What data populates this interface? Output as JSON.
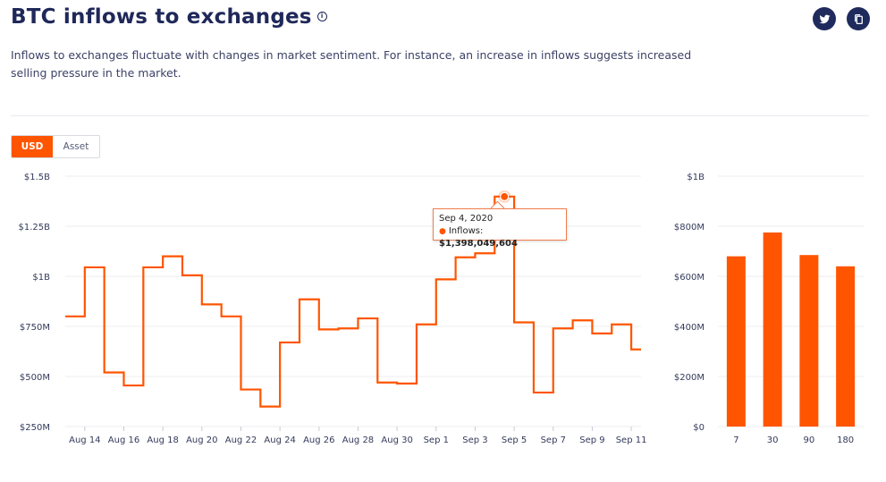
{
  "header": {
    "title": "BTC inflows to exchanges",
    "info_icon": "info-icon",
    "description": "Inflows to exchanges fluctuate with changes in market sentiment. For instance, an increase in inflows suggests increased selling pressure in the market.",
    "share_buttons": [
      {
        "name": "twitter-icon"
      },
      {
        "name": "copy-icon"
      }
    ]
  },
  "toggle": {
    "usd_label": "USD",
    "asset_label": "Asset",
    "active": "USD",
    "accent_color": "#ff5500"
  },
  "tooltip": {
    "date": "Sep 4, 2020",
    "label": "Inflows:",
    "value": "$1,398,049,604"
  },
  "chart_data": [
    {
      "type": "line",
      "step": true,
      "color": "#ff5500",
      "title": "",
      "xlabel": "",
      "ylabel": "",
      "ylim": [
        250000000,
        1500000000
      ],
      "yticks": [
        "$250M",
        "$500M",
        "$750M",
        "$1B",
        "$1.25B",
        "$1.5B"
      ],
      "xticks": [
        "Aug 14",
        "Aug 16",
        "Aug 18",
        "Aug 20",
        "Aug 22",
        "Aug 24",
        "Aug 26",
        "Aug 28",
        "Aug 30",
        "Sep 1",
        "Sep 3",
        "Sep 5",
        "Sep 7",
        "Sep 9",
        "Sep 11"
      ],
      "grid": true,
      "legend": "none",
      "series": [
        {
          "dates": [
            "Aug 13",
            "Aug 14",
            "Aug 15",
            "Aug 16",
            "Aug 17",
            "Aug 18",
            "Aug 19",
            "Aug 20",
            "Aug 21",
            "Aug 22",
            "Aug 23",
            "Aug 24",
            "Aug 25",
            "Aug 26",
            "Aug 27",
            "Aug 28",
            "Aug 29",
            "Aug 30",
            "Aug 31",
            "Sep 1",
            "Sep 2",
            "Sep 3",
            "Sep 4",
            "Sep 5",
            "Sep 6",
            "Sep 7",
            "Sep 8",
            "Sep 9",
            "Sep 10",
            "Sep 11"
          ],
          "values": [
            800000000,
            1045000000,
            520000000,
            455000000,
            1045000000,
            1100000000,
            1005000000,
            860000000,
            800000000,
            435000000,
            350000000,
            670000000,
            885000000,
            735000000,
            740000000,
            790000000,
            470000000,
            465000000,
            760000000,
            985000000,
            1095000000,
            1115000000,
            1398049604,
            770000000,
            420000000,
            740000000,
            780000000,
            715000000,
            760000000,
            635000000
          ]
        }
      ],
      "highlight": {
        "date": "Sep 4",
        "value": 1398049604
      }
    },
    {
      "type": "bar",
      "color": "#ff5500",
      "title": "",
      "xlabel": "",
      "ylabel": "",
      "ylim": [
        0,
        1000000000
      ],
      "yticks": [
        "$0",
        "$200M",
        "$400M",
        "$600M",
        "$800M",
        "$1B"
      ],
      "categories": [
        "7",
        "30",
        "90",
        "180"
      ],
      "values": [
        680000000,
        775000000,
        685000000,
        640000000
      ],
      "grid": true,
      "legend": "none"
    }
  ]
}
